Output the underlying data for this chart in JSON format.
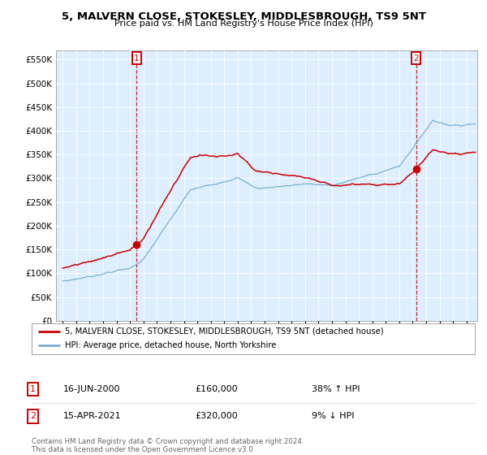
{
  "title": "5, MALVERN CLOSE, STOKESLEY, MIDDLESBROUGH, TS9 5NT",
  "subtitle": "Price paid vs. HM Land Registry's House Price Index (HPI)",
  "legend_line1": "5, MALVERN CLOSE, STOKESLEY, MIDDLESBROUGH, TS9 5NT (detached house)",
  "legend_line2": "HPI: Average price, detached house, North Yorkshire",
  "annotation1_date": "16-JUN-2000",
  "annotation1_price": "£160,000",
  "annotation1_hpi": "38% ↑ HPI",
  "annotation2_date": "15-APR-2021",
  "annotation2_price": "£320,000",
  "annotation2_hpi": "9% ↓ HPI",
  "footer": "Contains HM Land Registry data © Crown copyright and database right 2024.\nThis data is licensed under the Open Government Licence v3.0.",
  "sale1_year": 2000.46,
  "sale1_value": 160000,
  "sale2_year": 2021.29,
  "sale2_value": 320000,
  "ylim": [
    0,
    570000
  ],
  "xlim_start": 1994.5,
  "xlim_end": 2025.8,
  "bg_color": "#ddeeff",
  "red_line_color": "#cc0000",
  "blue_line_color": "#7ab0d4",
  "annotation_box_color": "#cc0000",
  "yticks": [
    0,
    50000,
    100000,
    150000,
    200000,
    250000,
    300000,
    350000,
    400000,
    450000,
    500000,
    550000
  ],
  "ytick_labels": [
    "£0",
    "£50K",
    "£100K",
    "£150K",
    "£200K",
    "£250K",
    "£300K",
    "£350K",
    "£400K",
    "£450K",
    "£500K",
    "£550K"
  ]
}
